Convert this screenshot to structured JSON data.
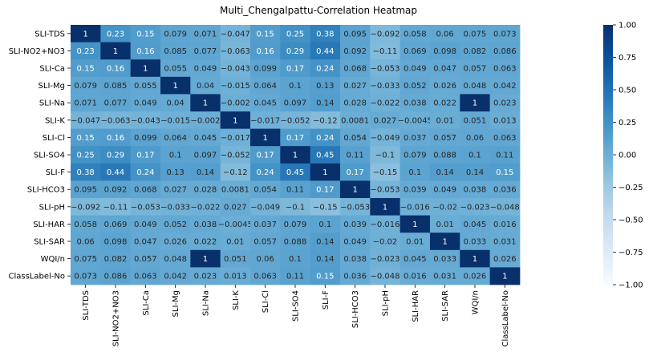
{
  "chart_data": {
    "type": "heatmap",
    "title": "Multi_Chengalpattu-Correlation Heatmap",
    "rows": [
      "SLI-TDS",
      "SLI-NO2+NO3",
      "SLI-Ca",
      "SLI-Mg",
      "SLI-Na",
      "SLI-K",
      "SLI-Cl",
      "SLI-SO4",
      "SLI-F",
      "SLI-HCO3",
      "SLI-pH",
      "SLI-HAR",
      "SLI-SAR",
      "WQI/n",
      "ClassLabel-No"
    ],
    "columns": [
      "SLI-TDS",
      "SLI-NO2+NO3",
      "SLI-Ca",
      "SLI-Mg",
      "SLI-Na",
      "SLI-K",
      "SLI-Cl",
      "SLI-SO4",
      "SLI-F",
      "SLI-HCO3",
      "SLI-pH",
      "SLI-HAR",
      "SLI-SAR",
      "WQI/n",
      "ClassLabel-No"
    ],
    "values": [
      [
        1,
        0.23,
        0.15,
        0.079,
        0.071,
        -0.047,
        0.15,
        0.25,
        0.38,
        0.095,
        -0.092,
        0.058,
        0.06,
        0.075,
        0.073
      ],
      [
        0.23,
        1,
        0.16,
        0.085,
        0.077,
        -0.063,
        0.16,
        0.29,
        0.44,
        0.092,
        -0.11,
        0.069,
        0.098,
        0.082,
        0.086
      ],
      [
        0.15,
        0.16,
        1,
        0.055,
        0.049,
        -0.043,
        0.099,
        0.17,
        0.24,
        0.068,
        -0.053,
        0.049,
        0.047,
        0.057,
        0.063
      ],
      [
        0.079,
        0.085,
        0.055,
        1,
        0.04,
        -0.015,
        0.064,
        0.1,
        0.13,
        0.027,
        -0.033,
        0.052,
        0.026,
        0.048,
        0.042
      ],
      [
        0.071,
        0.077,
        0.049,
        0.04,
        1,
        -0.002,
        0.045,
        0.097,
        0.14,
        0.028,
        -0.022,
        0.038,
        0.022,
        1,
        0.023
      ],
      [
        -0.047,
        -0.063,
        -0.043,
        -0.015,
        -0.002,
        1,
        -0.017,
        -0.052,
        -0.12,
        0.0081,
        0.027,
        -0.0045,
        0.01,
        0.051,
        0.013
      ],
      [
        0.15,
        0.16,
        0.099,
        0.064,
        0.045,
        -0.017,
        1,
        0.17,
        0.24,
        0.054,
        -0.049,
        0.037,
        0.057,
        0.06,
        0.063
      ],
      [
        0.25,
        0.29,
        0.17,
        0.1,
        0.097,
        -0.052,
        0.17,
        1,
        0.45,
        0.11,
        -0.1,
        0.079,
        0.088,
        0.1,
        0.11
      ],
      [
        0.38,
        0.44,
        0.24,
        0.13,
        0.14,
        -0.12,
        0.24,
        0.45,
        1,
        0.17,
        -0.15,
        0.1,
        0.14,
        0.14,
        0.15
      ],
      [
        0.095,
        0.092,
        0.068,
        0.027,
        0.028,
        0.0081,
        0.054,
        0.11,
        0.17,
        1,
        -0.053,
        0.039,
        0.049,
        0.038,
        0.036
      ],
      [
        -0.092,
        -0.11,
        -0.053,
        -0.033,
        -0.022,
        0.027,
        -0.049,
        -0.1,
        -0.15,
        -0.053,
        1,
        -0.016,
        -0.02,
        -0.023,
        -0.048
      ],
      [
        0.058,
        0.069,
        0.049,
        0.052,
        0.038,
        -0.0045,
        0.037,
        0.079,
        0.1,
        0.039,
        -0.016,
        1,
        0.01,
        0.045,
        0.016
      ],
      [
        0.06,
        0.098,
        0.047,
        0.026,
        0.022,
        0.01,
        0.057,
        0.088,
        0.14,
        0.049,
        -0.02,
        0.01,
        1,
        0.033,
        0.031
      ],
      [
        0.075,
        0.082,
        0.057,
        0.048,
        1,
        0.051,
        0.06,
        0.1,
        0.14,
        0.038,
        -0.023,
        0.045,
        0.033,
        1,
        0.026
      ],
      [
        0.073,
        0.086,
        0.063,
        0.042,
        0.023,
        0.013,
        0.063,
        0.11,
        0.15,
        0.036,
        -0.048,
        0.016,
        0.031,
        0.026,
        1
      ]
    ],
    "vmin": -1,
    "vmax": 1,
    "colormap": "Blues",
    "colorbar_ticks": [
      1.0,
      0.75,
      0.5,
      0.25,
      0.0,
      -0.25,
      -0.5,
      -0.75,
      -1.0
    ],
    "colorbar_tick_labels": [
      "1.00",
      "0.75",
      "0.50",
      "0.25",
      "0.00",
      "−0.25",
      "−0.50",
      "−0.75",
      "−1.00"
    ]
  }
}
